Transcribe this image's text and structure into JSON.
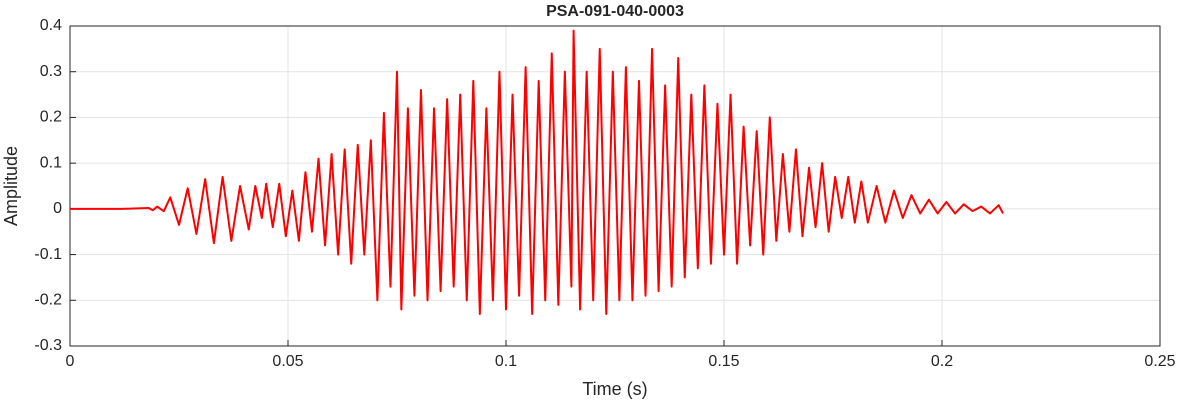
{
  "chart_data": {
    "type": "line",
    "title": "PSA-091-040-0003",
    "x_label": "Time (s)",
    "y_label": "Amplitude",
    "xlim": [
      0,
      0.25
    ],
    "xticks": [
      0,
      0.05,
      0.1,
      0.15,
      0.2,
      0.25
    ],
    "ylim": [
      -0.3,
      0.4
    ],
    "yticks": [
      -0.3,
      -0.2,
      -0.1,
      0,
      0.1,
      0.2,
      0.3,
      0.4
    ],
    "grid": true,
    "x": [
      0,
      0.012,
      0.018,
      0.019,
      0.02,
      0.0215,
      0.023,
      0.025,
      0.027,
      0.029,
      0.031,
      0.033,
      0.035,
      0.037,
      0.039,
      0.041,
      0.0425,
      0.044,
      0.045,
      0.0465,
      0.048,
      0.0495,
      0.051,
      0.0525,
      0.054,
      0.0555,
      0.057,
      0.0585,
      0.06,
      0.0615,
      0.063,
      0.0645,
      0.066,
      0.0675,
      0.069,
      0.0705,
      0.072,
      0.0735,
      0.075,
      0.076,
      0.0775,
      0.079,
      0.0805,
      0.082,
      0.0835,
      0.085,
      0.0865,
      0.088,
      0.0895,
      0.091,
      0.0925,
      0.094,
      0.0955,
      0.097,
      0.0985,
      0.1,
      0.1015,
      0.103,
      0.1045,
      0.106,
      0.1075,
      0.109,
      0.1105,
      0.112,
      0.1135,
      0.115,
      0.1155,
      0.117,
      0.1185,
      0.12,
      0.1215,
      0.123,
      0.1245,
      0.126,
      0.1275,
      0.129,
      0.1305,
      0.132,
      0.1335,
      0.135,
      0.1365,
      0.138,
      0.1395,
      0.141,
      0.1425,
      0.144,
      0.1455,
      0.147,
      0.1485,
      0.15,
      0.1515,
      0.153,
      0.1545,
      0.156,
      0.1575,
      0.159,
      0.1605,
      0.162,
      0.1635,
      0.165,
      0.1665,
      0.168,
      0.1695,
      0.171,
      0.1725,
      0.174,
      0.1755,
      0.177,
      0.1785,
      0.18,
      0.1815,
      0.183,
      0.185,
      0.187,
      0.189,
      0.191,
      0.193,
      0.195,
      0.197,
      0.199,
      0.201,
      0.203,
      0.205,
      0.207,
      0.209,
      0.211,
      0.213,
      0.214
    ],
    "series": [
      {
        "name": "Amplitude",
        "color": "#ff0000",
        "values": [
          0,
          0,
          0.002,
          -0.003,
          0.005,
          -0.005,
          0.025,
          -0.035,
          0.045,
          -0.055,
          0.065,
          -0.075,
          0.07,
          -0.07,
          0.05,
          -0.045,
          0.05,
          -0.02,
          0.055,
          -0.04,
          0.055,
          -0.06,
          0.04,
          -0.07,
          0.08,
          -0.05,
          0.11,
          -0.08,
          0.12,
          -0.1,
          0.13,
          -0.12,
          0.14,
          -0.1,
          0.15,
          -0.2,
          0.21,
          -0.17,
          0.3,
          -0.22,
          0.22,
          -0.19,
          0.26,
          -0.2,
          0.22,
          -0.18,
          0.24,
          -0.17,
          0.25,
          -0.2,
          0.28,
          -0.23,
          0.22,
          -0.2,
          0.3,
          -0.22,
          0.25,
          -0.19,
          0.31,
          -0.23,
          0.28,
          -0.2,
          0.34,
          -0.21,
          0.3,
          -0.17,
          0.39,
          -0.22,
          0.3,
          -0.2,
          0.35,
          -0.23,
          0.3,
          -0.2,
          0.31,
          -0.2,
          0.28,
          -0.19,
          0.35,
          -0.18,
          0.27,
          -0.17,
          0.33,
          -0.15,
          0.25,
          -0.13,
          0.27,
          -0.12,
          0.23,
          -0.1,
          0.25,
          -0.12,
          0.18,
          -0.08,
          0.17,
          -0.1,
          0.2,
          -0.07,
          0.12,
          -0.05,
          0.13,
          -0.06,
          0.09,
          -0.04,
          0.1,
          -0.05,
          0.07,
          -0.02,
          0.07,
          -0.03,
          0.06,
          -0.03,
          0.05,
          -0.03,
          0.04,
          -0.02,
          0.03,
          -0.01,
          0.02,
          -0.01,
          0.015,
          -0.01,
          0.01,
          -0.005,
          0.005,
          -0.01,
          0.008,
          -0.01
        ]
      }
    ]
  }
}
